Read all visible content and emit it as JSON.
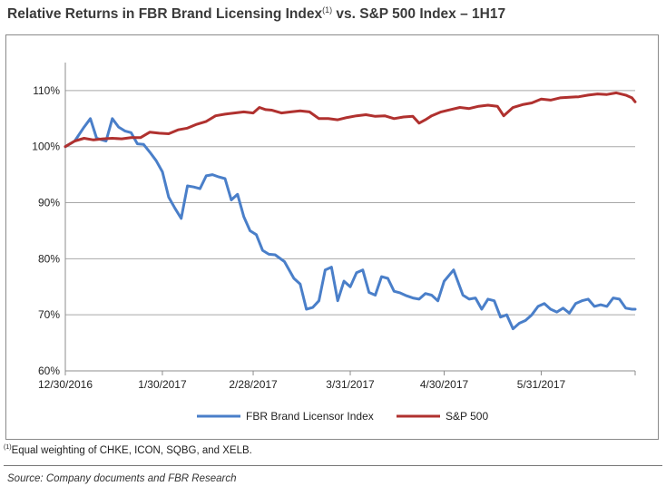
{
  "title_main": "Relative Returns in FBR Brand Licensing Index",
  "title_sup": "(1)",
  "title_rest": " vs. S&P 500 Index – 1H17",
  "footnote_sup": "(1)",
  "footnote_text": "Equal weighting of CHKE, ICON, SQBG, and XELB.",
  "source": "Source: Company documents and FBR Research",
  "colors": {
    "fbr": "#4a7fc9",
    "sp": "#b0312f",
    "grid": "#a8a8a8",
    "axis": "#8c8c8c"
  },
  "chart_data": {
    "type": "line",
    "title": "Relative Returns in FBR Brand Licensing Index(1) vs. S&P 500 Index – 1H17",
    "xlabel": "",
    "ylabel": "",
    "x_ticks": [
      "12/30/2016",
      "1/30/2017",
      "2/28/2017",
      "3/31/2017",
      "4/30/2017",
      "5/31/2017"
    ],
    "x_tick_day": [
      0,
      31,
      60,
      91,
      121,
      152
    ],
    "x_last_day": 182,
    "y_ticks": [
      "60%",
      "70%",
      "80%",
      "90%",
      "100%",
      "110%"
    ],
    "ylim": [
      60,
      115
    ],
    "grid": true,
    "legend_position": "bottom",
    "series": [
      {
        "name": "FBR Brand Licensor Index",
        "x_day": [
          0,
          3,
          6,
          8,
          10,
          13,
          15,
          17,
          19,
          21,
          23,
          25,
          27,
          29,
          31,
          33,
          35,
          37,
          39,
          41,
          43,
          45,
          47,
          49,
          51,
          53,
          55,
          57,
          59,
          61,
          63,
          65,
          67,
          70,
          73,
          75,
          77,
          79,
          81,
          83,
          85,
          87,
          89,
          91,
          93,
          95,
          97,
          99,
          101,
          103,
          105,
          107,
          109,
          111,
          113,
          115,
          117,
          119,
          121,
          124,
          127,
          129,
          131,
          133,
          135,
          137,
          139,
          141,
          143,
          145,
          147,
          149,
          151,
          153,
          155,
          157,
          159,
          161,
          163,
          165,
          167,
          169,
          171,
          173,
          175,
          177,
          179,
          181,
          182
        ],
        "values": [
          100,
          101,
          103.5,
          105,
          101.5,
          101,
          105,
          103.5,
          102.8,
          102.5,
          100.5,
          100.4,
          99,
          97.5,
          95.5,
          91,
          89,
          87.2,
          93,
          92.8,
          92.5,
          94.8,
          95,
          94.6,
          94.3,
          90.5,
          91.5,
          87.5,
          85,
          84.3,
          81.5,
          80.8,
          80.7,
          79.5,
          76.5,
          75.5,
          71,
          71.3,
          72.5,
          78,
          78.5,
          72.5,
          76,
          75,
          77.5,
          78,
          74,
          73.5,
          76.8,
          76.5,
          74.2,
          73.9,
          73.4,
          73,
          72.8,
          73.8,
          73.5,
          72.5,
          76,
          78,
          73.5,
          72.8,
          73,
          71,
          72.8,
          72.5,
          69.6,
          70,
          67.5,
          68.5,
          69,
          70,
          71.5,
          72,
          71,
          70.5,
          71.2,
          70.3,
          72,
          72.5,
          72.8,
          71.5,
          71.8,
          71.5,
          73,
          72.8,
          71.2,
          71,
          71
        ]
      },
      {
        "name": "S&P 500",
        "x_day": [
          0,
          3,
          6,
          9,
          12,
          15,
          18,
          21,
          24,
          27,
          30,
          33,
          36,
          39,
          42,
          45,
          48,
          51,
          54,
          57,
          60,
          62,
          64,
          66,
          69,
          72,
          75,
          78,
          81,
          84,
          87,
          90,
          93,
          96,
          99,
          102,
          105,
          108,
          111,
          113,
          115,
          117,
          120,
          123,
          126,
          129,
          132,
          135,
          138,
          140,
          143,
          146,
          149,
          152,
          155,
          158,
          161,
          164,
          167,
          170,
          173,
          176,
          179,
          181,
          182
        ],
        "values": [
          100,
          101,
          101.5,
          101.2,
          101.4,
          101.5,
          101.4,
          101.6,
          101.6,
          102.6,
          102.4,
          102.3,
          103,
          103.3,
          104,
          104.5,
          105.5,
          105.8,
          106,
          106.2,
          106,
          107,
          106.6,
          106.5,
          106,
          106.2,
          106.4,
          106.2,
          105,
          105,
          104.8,
          105.2,
          105.5,
          105.7,
          105.4,
          105.5,
          105,
          105.3,
          105.4,
          104.2,
          104.8,
          105.5,
          106.2,
          106.6,
          107,
          106.8,
          107.2,
          107.4,
          107.2,
          105.5,
          107,
          107.5,
          107.8,
          108.5,
          108.3,
          108.7,
          108.8,
          108.9,
          109.2,
          109.4,
          109.3,
          109.6,
          109.2,
          108.7,
          108
        ]
      }
    ]
  }
}
